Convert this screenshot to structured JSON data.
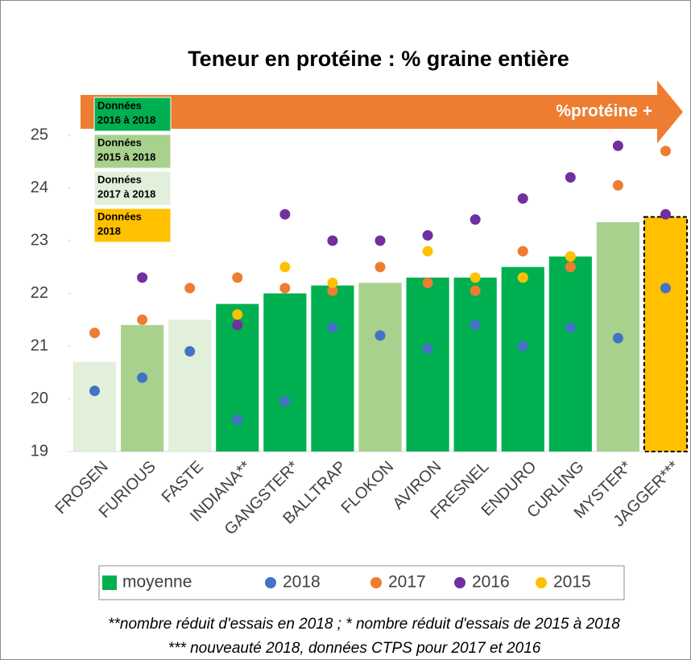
{
  "chart_data": {
    "type": "bar",
    "title": "Teneur en protéine : % graine entière",
    "arrow_label": "%protéine +",
    "categories": [
      "FROSEN",
      "FURIOUS",
      "FASTE",
      "INDIANA**",
      "GANGSTER*",
      "BALLTRAP",
      "FLOKON",
      "AVIRON",
      "FRESNEL",
      "ENDURO",
      "CURLING",
      "MYSTER*",
      "JAGGER***"
    ],
    "bars": {
      "name": "moyenne",
      "color": "#00b050",
      "values": [
        20.7,
        21.4,
        21.5,
        21.8,
        22.0,
        22.15,
        22.2,
        22.3,
        22.3,
        22.5,
        22.7,
        23.35,
        23.45
      ],
      "colors": [
        "#e2efda",
        "#a9d18e",
        "#e2efda",
        "#00b050",
        "#00b050",
        "#00b050",
        "#a9d18e",
        "#00b050",
        "#00b050",
        "#00b050",
        "#00b050",
        "#a9d18e",
        "#ffc000"
      ],
      "borders": [
        null,
        null,
        null,
        null,
        null,
        null,
        null,
        null,
        null,
        null,
        null,
        null,
        "dashed"
      ]
    },
    "series": [
      {
        "name": "2018",
        "color": "#4472c4",
        "values": [
          20.15,
          20.4,
          20.9,
          19.6,
          19.95,
          21.35,
          21.2,
          20.95,
          21.4,
          21.0,
          21.35,
          21.15,
          22.1
        ]
      },
      {
        "name": "2017",
        "color": "#ed7d31",
        "values": [
          21.25,
          21.5,
          22.1,
          22.3,
          22.1,
          22.05,
          22.5,
          22.2,
          22.05,
          22.8,
          22.5,
          24.05,
          24.7
        ]
      },
      {
        "name": "2016",
        "color": "#7030a0",
        "values": [
          null,
          22.3,
          null,
          21.4,
          23.5,
          23.0,
          23.0,
          23.1,
          23.4,
          23.8,
          24.2,
          24.8,
          23.5
        ]
      },
      {
        "name": "2015",
        "color": "#ffc000",
        "values": [
          null,
          null,
          null,
          21.6,
          22.5,
          22.2,
          null,
          22.8,
          22.3,
          22.3,
          22.7,
          null,
          null
        ]
      }
    ],
    "groups": [
      {
        "lines": [
          "Données",
          "2016 à 2018"
        ],
        "color": "#00b050"
      },
      {
        "lines": [
          "Données",
          "2015 à 2018"
        ],
        "color": "#a9d18e"
      },
      {
        "lines": [
          "Données",
          "2017 à 2018"
        ],
        "color": "#e2efda"
      },
      {
        "lines": [
          "Données",
          "2018"
        ],
        "color": "#ffc000"
      }
    ],
    "ylim": [
      19,
      25
    ],
    "yticks": [
      19,
      20,
      21,
      22,
      23,
      24,
      25
    ],
    "notes": [
      "**nombre réduit d'essais en 2018  ; * nombre réduit d'essais de 2015 à 2018",
      "*** nouveauté 2018, données CTPS pour 2017 et 2016"
    ]
  }
}
